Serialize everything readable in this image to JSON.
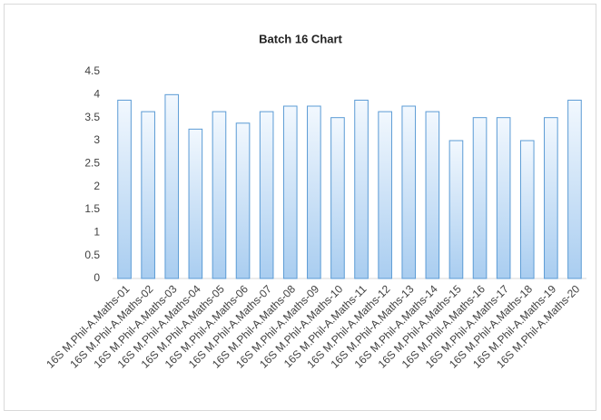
{
  "chart_data": {
    "type": "bar",
    "title": "Batch 16 Chart",
    "categories": [
      "16S M.Phil-A.Maths-01",
      "16S M.Phil-A.Maths-02",
      "16S M.Phil-A.Maths-03",
      "16S M.Phil-A.Maths-04",
      "16S M.Phil-A.Maths-05",
      "16S M.Phil-A.Maths-06",
      "16S M.Phil-A.Maths-07",
      "16S M.Phil-A.Maths-08",
      "16S M.Phil-A.Maths-09",
      "16S M.Phil-A.Maths-10",
      "16S M.Phil-A.Maths-11",
      "16S M.Phil-A.Maths-12",
      "16S M.Phil-A.Maths-13",
      "16S M.Phil-A.Maths-14",
      "16S M.Phil-A.Maths-15",
      "16S M.Phil-A.Maths-16",
      "16S M.Phil-A.Maths-17",
      "16S M.Phil-A.Maths-18",
      "16S M.Phil-A.Maths-19",
      "16S M.Phil-A.Maths-20"
    ],
    "values": [
      3.88,
      3.63,
      4.0,
      3.25,
      3.63,
      3.38,
      3.63,
      3.75,
      3.75,
      3.5,
      3.88,
      3.63,
      3.75,
      3.63,
      3.0,
      3.5,
      3.5,
      3.0,
      3.5,
      3.88
    ],
    "color": "#5b9bd5",
    "ylim": [
      0,
      4.5
    ],
    "yticks": [
      0,
      0.5,
      1,
      1.5,
      2,
      2.5,
      3,
      3.5,
      4,
      4.5
    ],
    "grid": false
  }
}
